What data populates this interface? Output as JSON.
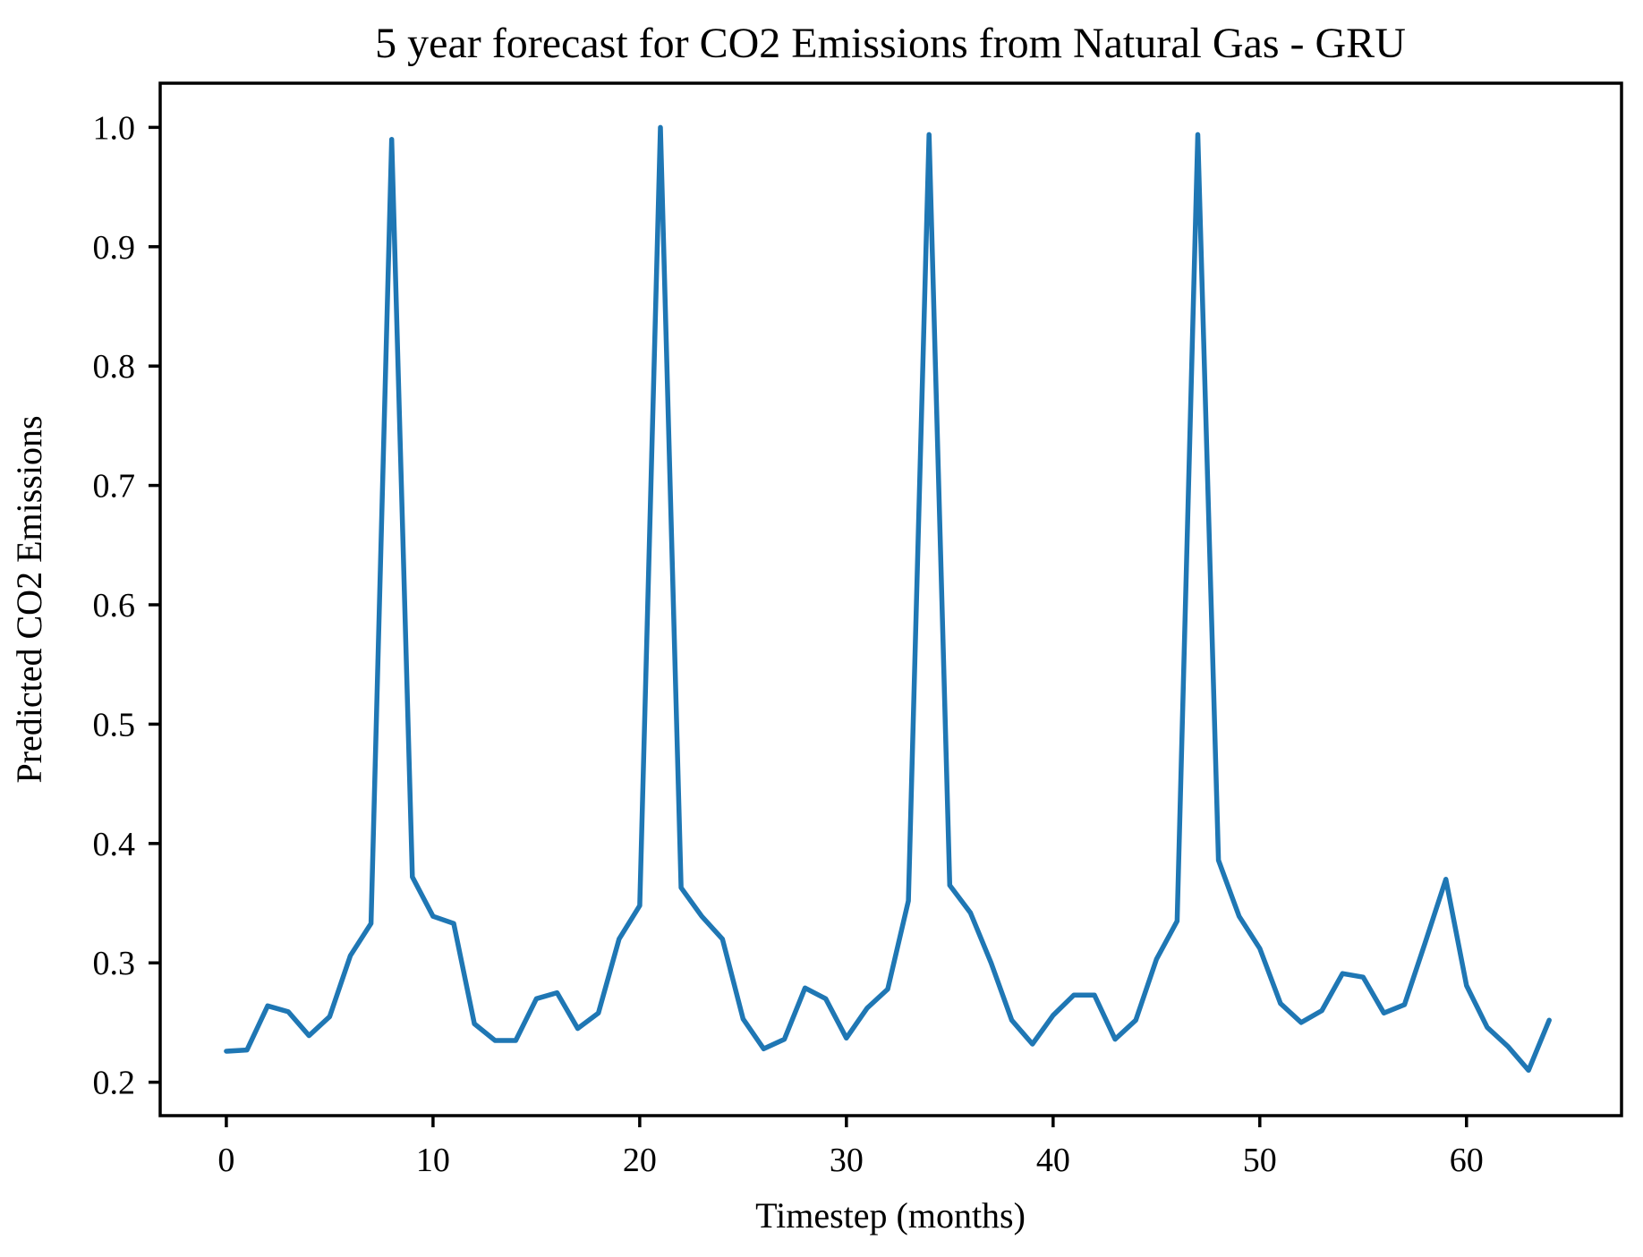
{
  "chart_data": {
    "type": "line",
    "title": "5 year forecast for CO2 Emissions from Natural Gas - GRU",
    "xlabel": "Timestep (months)",
    "ylabel": "Predicted CO2 Emissions",
    "x": [
      0,
      1,
      2,
      3,
      4,
      5,
      6,
      7,
      8,
      9,
      10,
      11,
      12,
      13,
      14,
      15,
      16,
      17,
      18,
      19,
      20,
      21,
      22,
      23,
      24,
      25,
      26,
      27,
      28,
      29,
      30,
      31,
      32,
      33,
      34,
      35,
      36,
      37,
      38,
      39,
      40,
      41,
      42,
      43,
      44,
      45,
      46,
      47,
      48,
      49,
      50,
      51,
      52,
      53,
      54,
      55,
      56,
      57,
      58,
      59,
      60,
      61,
      62,
      63,
      64
    ],
    "values": [
      0.226,
      0.227,
      0.264,
      0.259,
      0.239,
      0.255,
      0.306,
      0.333,
      0.99,
      0.372,
      0.339,
      0.333,
      0.249,
      0.235,
      0.235,
      0.27,
      0.275,
      0.245,
      0.258,
      0.32,
      0.348,
      1.0,
      0.363,
      0.339,
      0.32,
      0.253,
      0.228,
      0.236,
      0.279,
      0.27,
      0.237,
      0.262,
      0.278,
      0.352,
      0.994,
      0.365,
      0.342,
      0.3,
      0.252,
      0.232,
      0.256,
      0.273,
      0.273,
      0.236,
      0.252,
      0.303,
      0.335,
      0.994,
      0.386,
      0.339,
      0.312,
      0.266,
      0.25,
      0.26,
      0.291,
      0.288,
      0.258,
      0.265,
      0.317,
      0.37,
      0.281,
      0.246,
      0.23,
      0.21,
      0.252
    ],
    "xlim": [
      -3.2,
      67.5
    ],
    "ylim": [
      0.172,
      1.037
    ],
    "xticks": [
      0,
      10,
      20,
      30,
      40,
      50,
      60
    ],
    "xtick_labels": [
      "0",
      "10",
      "20",
      "30",
      "40",
      "50",
      "60"
    ],
    "yticks": [
      0.2,
      0.3,
      0.4,
      0.5,
      0.6,
      0.7,
      0.8,
      0.9,
      1.0
    ],
    "ytick_labels": [
      "0.2",
      "0.3",
      "0.4",
      "0.5",
      "0.6",
      "0.7",
      "0.8",
      "0.9",
      "1.0"
    ],
    "grid": false,
    "legend": "none",
    "line_color": "#1f77b4",
    "axis_color": "#000000",
    "background_color": "#ffffff"
  }
}
